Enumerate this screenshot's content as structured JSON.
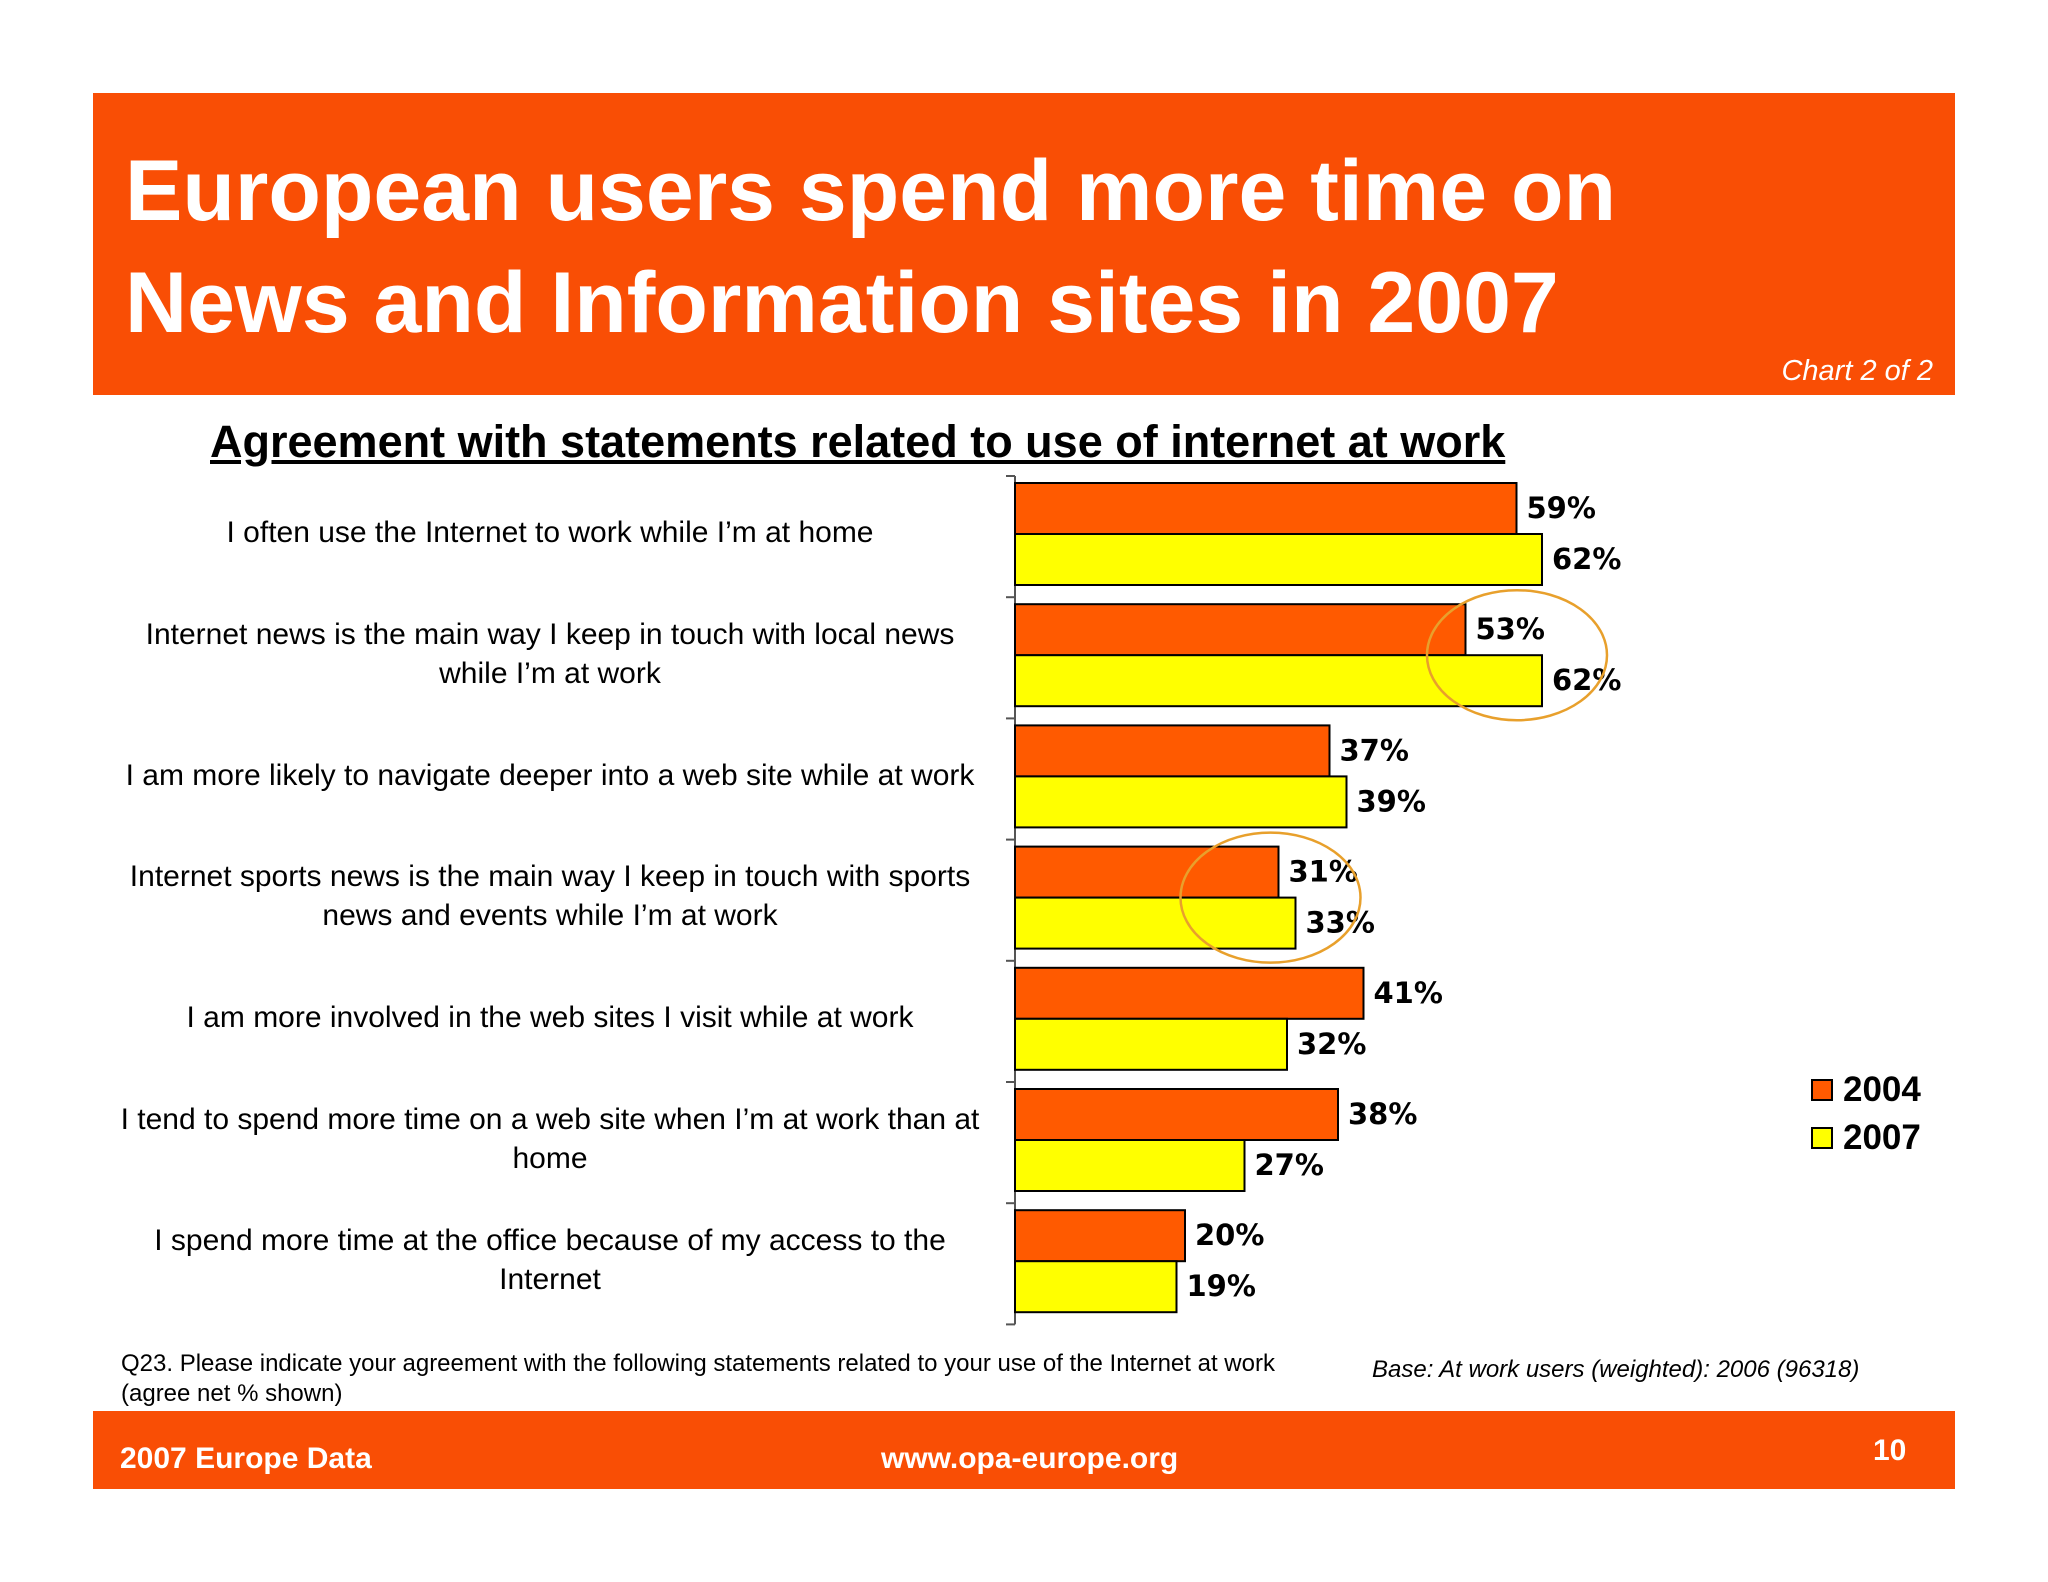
{
  "header": {
    "title_line1": "European users spend more time on",
    "title_line2": "News and Information sites in 2007",
    "chart_number": "Chart 2 of 2"
  },
  "colors": {
    "brand": "#f94e05",
    "series_2004": "#ff5a00",
    "series_2007": "#ffff00",
    "highlight_circle": "#e8a02c"
  },
  "chart_data": {
    "type": "bar",
    "orientation": "horizontal",
    "title": "Agreement with statements related to use of internet at work",
    "categories": [
      "I often use the Internet to work while I’m at home",
      "Internet news is the main way I keep in touch with local news while I’m at work",
      "I am more likely to navigate deeper into a web site while at work",
      "Internet sports news is the main way I keep in touch with sports news and events while I’m at work",
      "I am more involved in the web sites I visit while at work",
      "I tend to spend more time on a web site when I’m at work than at home",
      "I spend more time at the office because of my access to the Internet"
    ],
    "series": [
      {
        "name": "2004",
        "values": [
          59,
          53,
          37,
          31,
          41,
          38,
          20
        ]
      },
      {
        "name": "2007",
        "values": [
          62,
          62,
          39,
          33,
          32,
          27,
          19
        ]
      }
    ],
    "value_labels": {
      "2004": [
        "59%",
        "53%",
        "37%",
        "31%",
        "41%",
        "38%",
        "20%"
      ],
      "2007": [
        "62%",
        "62%",
        "39%",
        "33%",
        "32%",
        "27%",
        "19%"
      ]
    },
    "highlighted_categories": [
      1,
      3
    ],
    "xlim": [
      0,
      100
    ],
    "legend_position": "right"
  },
  "footnote": "Q23. Please indicate your agreement with the following statements related to your use of the Internet at work (agree net % shown)",
  "base_note": "Base: At work users (weighted): 2006 (96318)",
  "footer": {
    "left": "2007 Europe Data",
    "center": "www.opa-europe.org",
    "page": "10"
  }
}
